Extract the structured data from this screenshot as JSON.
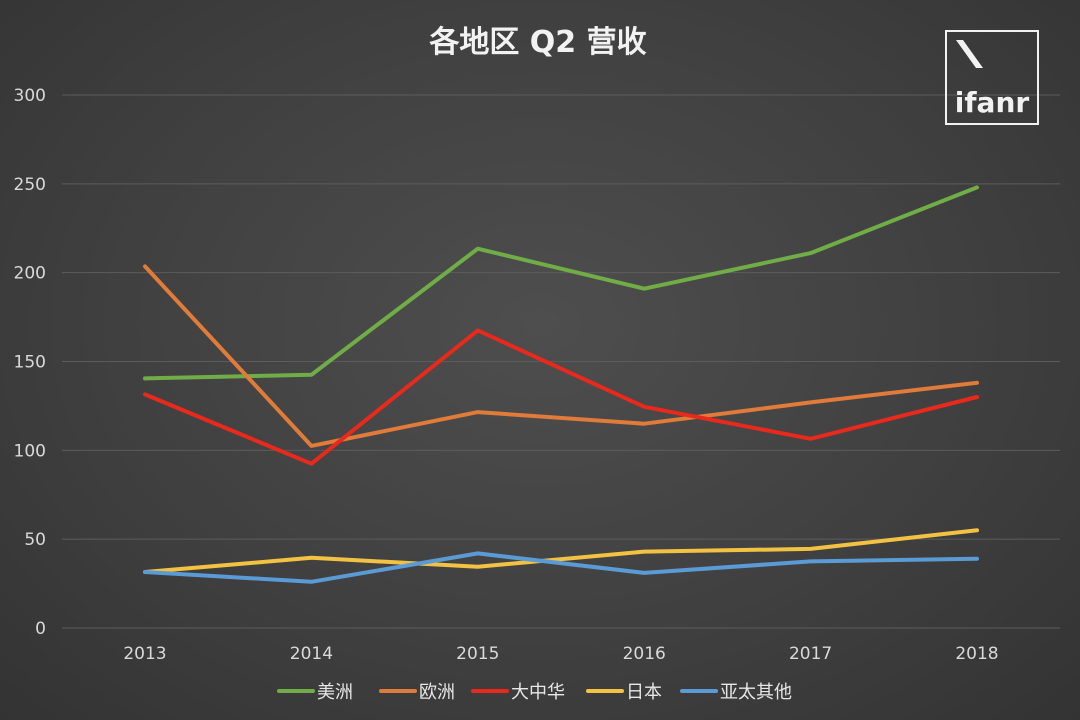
{
  "chart_data": {
    "type": "line",
    "title": "各地区 Q2 营收",
    "categories": [
      "2013",
      "2014",
      "2015",
      "2016",
      "2017",
      "2018"
    ],
    "ylim": [
      0,
      300
    ],
    "yticks": [
      "0",
      "50",
      "100",
      "150",
      "200",
      "250",
      "300"
    ],
    "grid": true,
    "legend_position": "bottom",
    "series": [
      {
        "name": "美洲",
        "color": "#70ad47",
        "values": [
          140.5,
          142.5,
          213.5,
          191,
          211,
          248
        ]
      },
      {
        "name": "欧洲",
        "color": "#e07b39",
        "values": [
          203.5,
          102.5,
          121.5,
          115,
          127,
          138
        ]
      },
      {
        "name": "大中华",
        "color": "#e8291c",
        "values": [
          131.5,
          92.5,
          167.5,
          124.5,
          106.5,
          130
        ]
      },
      {
        "name": "日本",
        "color": "#f4c242",
        "values": [
          31.5,
          39.5,
          34.5,
          43,
          44.5,
          55
        ]
      },
      {
        "name": "亚太其他",
        "color": "#5b9bd5",
        "values": [
          31.5,
          26,
          42,
          31,
          37.5,
          39
        ]
      }
    ]
  },
  "logo": {
    "text": "ifanr",
    "icon": "slash-mark-icon"
  }
}
